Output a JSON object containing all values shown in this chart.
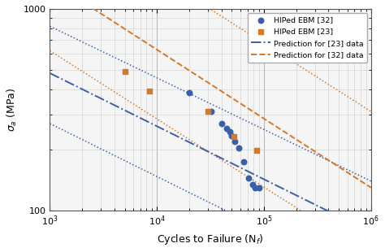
{
  "xlim": [
    1000,
    1000000
  ],
  "ylim": [
    100,
    1000
  ],
  "blue_circles": [
    [
      20000,
      385
    ],
    [
      32000,
      310
    ],
    [
      40000,
      270
    ],
    [
      45000,
      255
    ],
    [
      48000,
      245
    ],
    [
      50000,
      235
    ],
    [
      53000,
      220
    ],
    [
      58000,
      205
    ],
    [
      65000,
      175
    ],
    [
      72000,
      145
    ],
    [
      78000,
      135
    ],
    [
      83000,
      130
    ],
    [
      90000,
      130
    ]
  ],
  "orange_squares": [
    [
      5000,
      490
    ],
    [
      8500,
      390
    ],
    [
      30000,
      310
    ],
    [
      52000,
      232
    ],
    [
      85000,
      198
    ]
  ],
  "blue_dashdot": {
    "x": [
      1000,
      1000000
    ],
    "y": [
      480,
      78
    ]
  },
  "orange_dashed": {
    "x": [
      1000,
      1000000
    ],
    "y": [
      1380,
      130
    ]
  },
  "blue_dot_upper": {
    "x": [
      1000,
      1000000
    ],
    "y": [
      820,
      140
    ]
  },
  "blue_dot_lower": {
    "x": [
      1000,
      1000000
    ],
    "y": [
      270,
      44
    ]
  },
  "orange_dot_upper": {
    "x": [
      1000,
      1000000
    ],
    "y": [
      3200,
      310
    ]
  },
  "orange_dot_lower": {
    "x": [
      1000,
      1000000
    ],
    "y": [
      620,
      60
    ]
  },
  "blue_color": "#3a5fa8",
  "orange_color": "#d4782a",
  "bg_color": "#f5f5f5",
  "legend_labels": [
    "HIPed EBM [32]",
    "HIPed EBM [23]",
    "Prediction for [23] data",
    "Prediction for [32] data"
  ],
  "xlabel": "Cycles to Failure (N$_f$)",
  "ylabel": "$\\sigma_a$ (MPa)"
}
